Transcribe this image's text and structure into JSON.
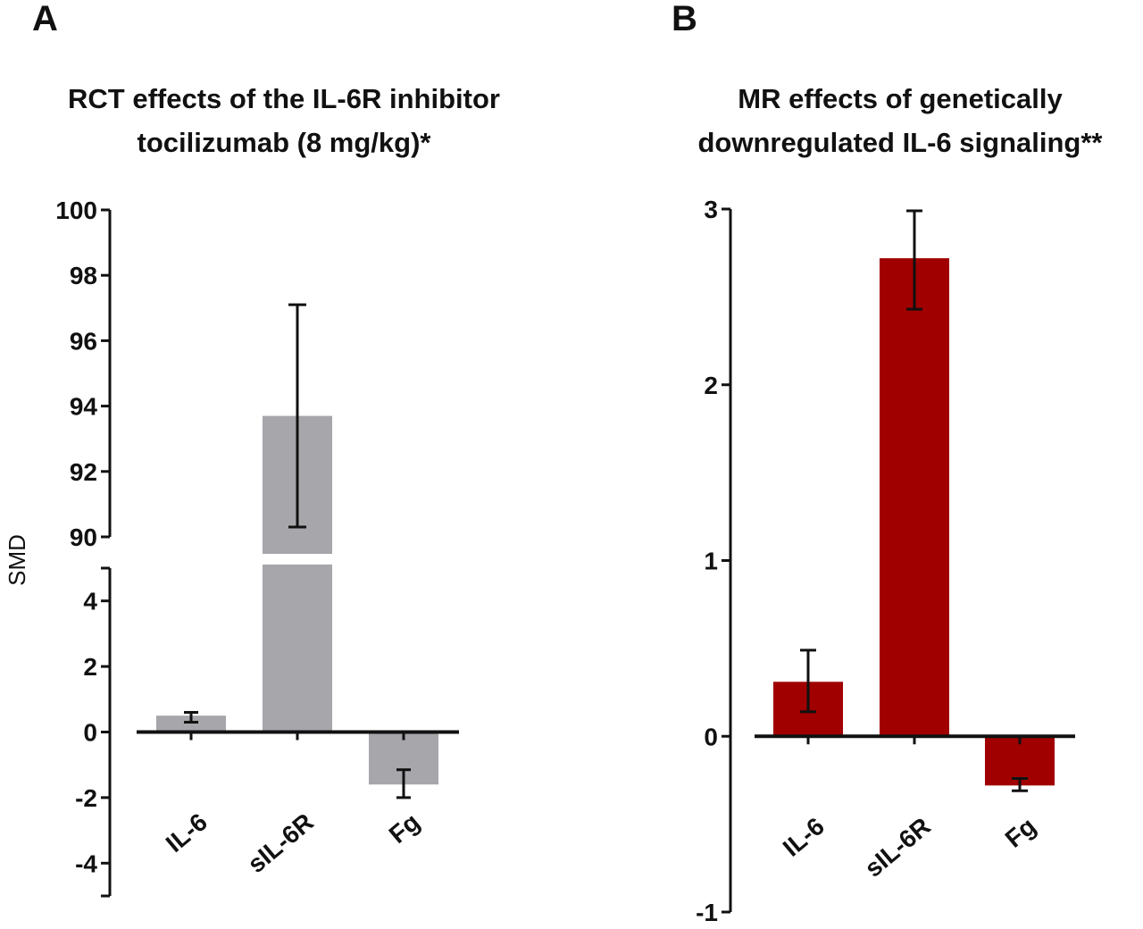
{
  "figure": {
    "panels": [
      "A",
      "B"
    ]
  },
  "chart_data": [
    {
      "panel": "A",
      "type": "bar",
      "title": [
        "RCT effects of the IL-6R inhibitor",
        "tocilizumab  (8 mg/kg)*"
      ],
      "ylabel": "SMD",
      "xlabel": "",
      "categories": [
        "IL-6",
        "sIL-6R",
        "Fg"
      ],
      "values": [
        0.5,
        93.7,
        -1.6
      ],
      "error_low": [
        0.3,
        90.3,
        -2.0
      ],
      "error_high": [
        0.6,
        97.1,
        -1.15
      ],
      "axis_break": true,
      "ylim_lower": [
        -5,
        5
      ],
      "ylim_upper": [
        90,
        100
      ],
      "yticks_lower": [
        "-4",
        "-2",
        "0",
        "2",
        "4"
      ],
      "yticks_upper": [
        "90",
        "92",
        "94",
        "96",
        "98",
        "100"
      ],
      "bar_color": "#a6a6ab",
      "grid": false,
      "legend": "none"
    },
    {
      "panel": "B",
      "type": "bar",
      "title": [
        "MR effects of genetically",
        "downregulated IL-6 signaling**"
      ],
      "ylabel": "",
      "xlabel": "",
      "categories": [
        "IL-6",
        "sIL-6R",
        "Fg"
      ],
      "values": [
        0.31,
        2.72,
        -0.28
      ],
      "error_low": [
        0.14,
        2.43,
        -0.31
      ],
      "error_high": [
        0.49,
        2.99,
        -0.24
      ],
      "ylim": [
        -1,
        3
      ],
      "yticks": [
        "-1",
        "0",
        "1",
        "2",
        "3"
      ],
      "bar_color": "#a00000",
      "grid": false,
      "legend": "none"
    }
  ]
}
